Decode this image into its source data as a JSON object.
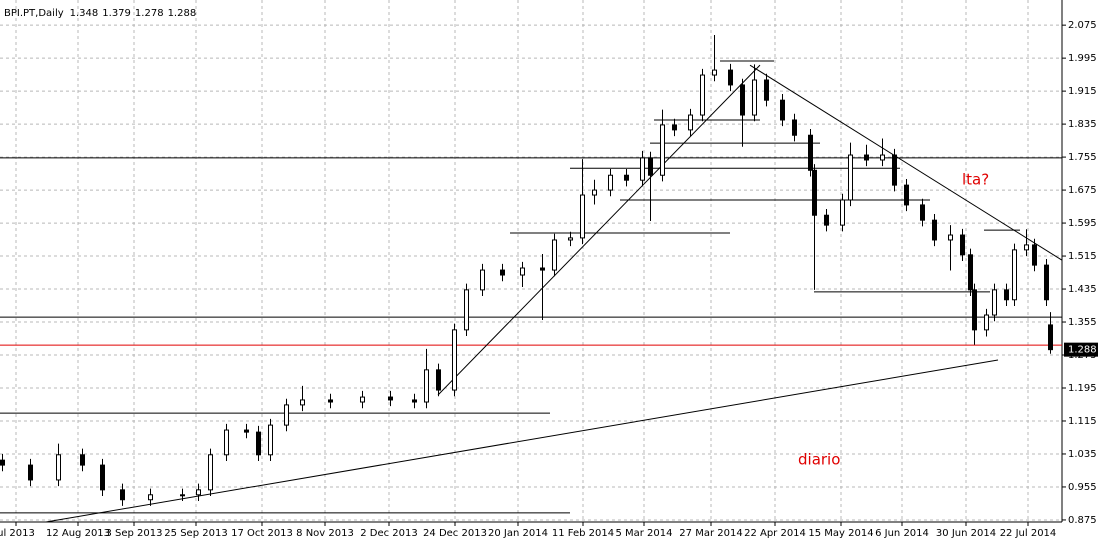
{
  "chart_data": {
    "type": "candlestick",
    "symbol": "BPI.PT,Daily",
    "annotations": [
      {
        "text": "lta?",
        "x": 240,
        "y": 1.7,
        "color": "#e00000"
      },
      {
        "text": "diario",
        "x": 199,
        "y": 1.02,
        "color": "#e00000"
      }
    ],
    "x": [
      0,
      7,
      14,
      20,
      25,
      30,
      37,
      45,
      49,
      52,
      56,
      61,
      64,
      67,
      71,
      75,
      82,
      90,
      97,
      103,
      106,
      109,
      113,
      116,
      120,
      125,
      130,
      135,
      138,
      142,
      145,
      148,
      152,
      156,
      160,
      162,
      165,
      168,
      172,
      175,
      178,
      182,
      185,
      188,
      191,
      195,
      198,
      202,
      203,
      206,
      210,
      212,
      216,
      220,
      223,
      226,
      230,
      233,
      237,
      240,
      242,
      243,
      246,
      248,
      251,
      253,
      256,
      258,
      261,
      262
    ],
    "open": [
      1.02,
      1.008,
      0.972,
      1.033,
      1.008,
      0.948,
      0.924,
      0.936,
      0.936,
      0.948,
      1.033,
      1.093,
      1.088,
      1.033,
      1.105,
      1.154,
      1.166,
      1.161,
      1.173,
      1.166,
      1.161,
      1.239,
      1.19,
      1.336,
      1.433,
      1.481,
      1.469,
      1.486,
      1.481,
      1.554,
      1.559,
      1.663,
      1.675,
      1.711,
      1.699,
      1.753,
      1.711,
      1.833,
      1.821,
      1.857,
      1.954,
      1.966,
      1.93,
      1.857,
      1.942,
      1.893,
      1.845,
      1.808,
      1.723,
      1.614,
      1.59,
      1.651,
      1.76,
      1.748,
      1.76,
      1.687,
      1.639,
      1.602,
      1.554,
      1.566,
      1.518,
      1.433,
      1.336,
      1.372,
      1.433,
      1.409,
      1.53,
      1.542,
      1.493,
      1.348
    ],
    "high": [
      1.035,
      1.023,
      1.06,
      1.048,
      1.023,
      0.963,
      0.951,
      0.951,
      0.963,
      1.048,
      1.108,
      1.108,
      1.103,
      1.12,
      1.169,
      1.2,
      1.181,
      1.188,
      1.188,
      1.181,
      1.29,
      1.254,
      1.351,
      1.448,
      1.496,
      1.496,
      1.501,
      1.52,
      1.569,
      1.574,
      1.75,
      1.7,
      1.726,
      1.726,
      1.77,
      1.768,
      1.87,
      1.848,
      1.872,
      1.969,
      2.051,
      1.981,
      1.945,
      1.98,
      1.957,
      1.908,
      1.86,
      1.823,
      1.738,
      1.629,
      1.666,
      1.79,
      1.785,
      1.8,
      1.775,
      1.702,
      1.654,
      1.617,
      1.59,
      1.581,
      1.533,
      1.448,
      1.387,
      1.448,
      1.448,
      1.545,
      1.58,
      1.557,
      1.508,
      1.379
    ],
    "low": [
      0.993,
      0.957,
      0.957,
      0.993,
      0.933,
      0.909,
      0.909,
      0.921,
      0.921,
      0.933,
      1.018,
      1.073,
      1.018,
      1.018,
      1.09,
      1.139,
      1.146,
      1.146,
      1.151,
      1.146,
      1.146,
      1.175,
      1.175,
      1.321,
      1.418,
      1.454,
      1.44,
      1.36,
      1.466,
      1.539,
      1.544,
      1.64,
      1.66,
      1.684,
      1.684,
      1.6,
      1.696,
      1.806,
      1.806,
      1.842,
      1.939,
      1.915,
      1.78,
      1.842,
      1.878,
      1.83,
      1.793,
      1.708,
      1.433,
      1.575,
      1.575,
      1.636,
      1.733,
      1.733,
      1.672,
      1.624,
      1.587,
      1.539,
      1.48,
      1.503,
      1.418,
      1.3,
      1.32,
      1.357,
      1.394,
      1.394,
      1.515,
      1.478,
      1.394,
      1.278
    ],
    "close": [
      1.008,
      0.972,
      1.033,
      1.008,
      0.948,
      0.924,
      0.936,
      0.936,
      0.948,
      1.033,
      1.093,
      1.088,
      1.033,
      1.105,
      1.154,
      1.166,
      1.161,
      1.173,
      1.166,
      1.161,
      1.239,
      1.19,
      1.336,
      1.433,
      1.481,
      1.469,
      1.486,
      1.481,
      1.554,
      1.559,
      1.663,
      1.675,
      1.711,
      1.699,
      1.753,
      1.711,
      1.833,
      1.821,
      1.857,
      1.954,
      1.966,
      1.93,
      1.857,
      1.942,
      1.893,
      1.845,
      1.808,
      1.723,
      1.614,
      1.59,
      1.651,
      1.76,
      1.748,
      1.76,
      1.687,
      1.639,
      1.602,
      1.554,
      1.566,
      1.518,
      1.433,
      1.336,
      1.372,
      1.433,
      1.409,
      1.53,
      1.542,
      1.493,
      1.409,
      1.288
    ],
    "hlines": [
      {
        "value": 1.753,
        "color": "#000000"
      },
      {
        "value": 1.367,
        "color": "#000000"
      },
      {
        "value": 1.299,
        "color": "#e00000"
      }
    ],
    "segments": [
      {
        "x": [
          11,
          249
        ],
        "y": [
          0.87,
          1.263
        ]
      },
      {
        "x": [
          -0.5,
          142
        ],
        "y": [
          0.892,
          0.892
        ]
      },
      {
        "x": [
          -0.5,
          137
        ],
        "y": [
          1.134,
          1.134
        ]
      },
      {
        "x": [
          109,
          189.5
        ],
        "y": [
          1.178,
          1.978
        ]
      },
      {
        "x": [
          187,
          265
        ],
        "y": [
          1.978,
          1.505
        ]
      },
      {
        "x": [
          179.5,
          193
        ],
        "y": [
          1.988,
          1.988
        ]
      },
      {
        "x": [
          127,
          182
        ],
        "y": [
          1.571,
          1.571
        ]
      },
      {
        "x": [
          154.5,
          232
        ],
        "y": [
          1.651,
          1.651
        ]
      },
      {
        "x": [
          142,
          224.5
        ],
        "y": [
          1.728,
          1.728
        ]
      },
      {
        "x": [
          162,
          204.5
        ],
        "y": [
          1.789,
          1.789
        ]
      },
      {
        "x": [
          163,
          189.5
        ],
        "y": [
          1.845,
          1.845
        ]
      },
      {
        "x": [
          203,
          247
        ],
        "y": [
          1.428,
          1.428
        ]
      },
      {
        "x": [
          245.5,
          254.5
        ],
        "y": [
          1.578,
          1.578
        ]
      }
    ],
    "xlim": [
      -0.5,
      265
    ],
    "ylim": [
      0.87,
      2.136
    ],
    "xticks": [
      {
        "value": 3.5,
        "label": "ul 2013"
      },
      {
        "value": 19,
        "label": "12 Aug 2013"
      },
      {
        "value": 33,
        "label": "3 Sep 2013"
      },
      {
        "value": 48.5,
        "label": "25 Sep 2013"
      },
      {
        "value": 65,
        "label": "17 Oct 2013"
      },
      {
        "value": 80.75,
        "label": "8 Nov 2013"
      },
      {
        "value": 96.75,
        "label": "2 Dec 2013"
      },
      {
        "value": 113.25,
        "label": "24 Dec 2013"
      },
      {
        "value": 129,
        "label": "20 Jan 2014"
      },
      {
        "value": 145.25,
        "label": "11 Feb 2014"
      },
      {
        "value": 160.5,
        "label": "5 Mar 2014"
      },
      {
        "value": 177.25,
        "label": "27 Mar 2014"
      },
      {
        "value": 193.25,
        "label": "22 Apr 2014"
      },
      {
        "value": 209.75,
        "label": "15 May 2014"
      },
      {
        "value": 225,
        "label": "6 Jun 2014"
      },
      {
        "value": 241,
        "label": "30 Jun 2014"
      },
      {
        "value": 256.5,
        "label": "22 Jul 2014"
      }
    ],
    "yticks": [
      2.075,
      1.995,
      1.915,
      1.835,
      1.755,
      1.675,
      1.595,
      1.515,
      1.435,
      1.355,
      1.275,
      1.195,
      1.115,
      1.035,
      0.955,
      0.875
    ],
    "grid": true
  }
}
